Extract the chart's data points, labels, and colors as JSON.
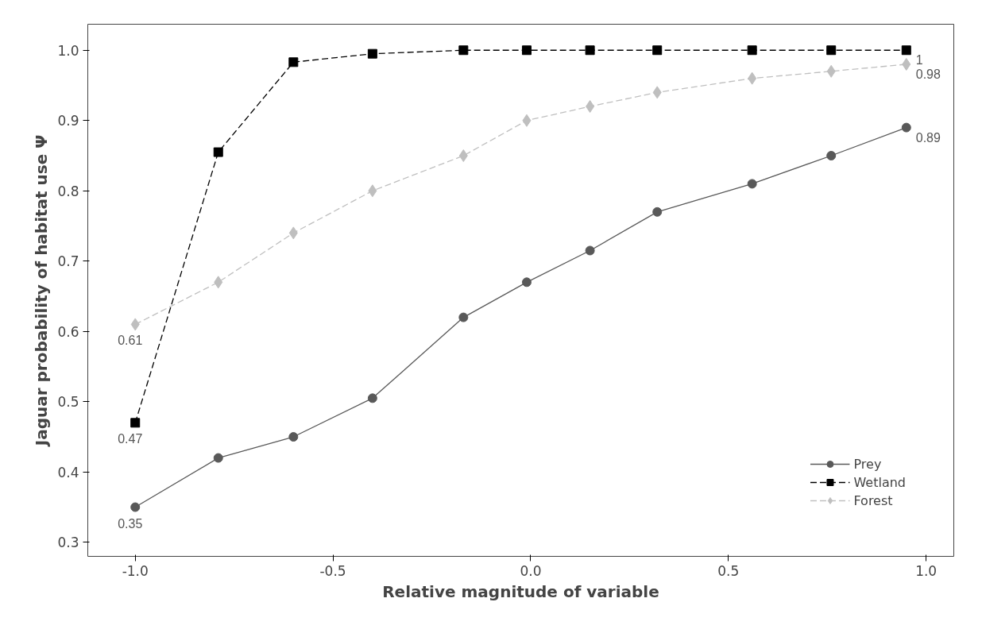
{
  "chart_data": {
    "type": "line",
    "xlabel": "Relative magnitude of variable",
    "ylabel": "Jaguar probability of habitat use Ψ",
    "x": [
      -1.0,
      -0.79,
      -0.6,
      -0.4,
      -0.17,
      -0.01,
      0.15,
      0.32,
      0.56,
      0.76,
      0.95
    ],
    "series": [
      {
        "name": "Prey",
        "color": "#595959",
        "marker": "circle",
        "line_style": "solid",
        "values": [
          0.35,
          0.42,
          0.45,
          0.505,
          0.62,
          0.67,
          0.715,
          0.77,
          0.81,
          0.85,
          0.89
        ],
        "value_labels": [
          "0.35",
          null,
          null,
          null,
          null,
          null,
          null,
          null,
          null,
          null,
          "0.89"
        ]
      },
      {
        "name": "Wetland",
        "color": "#000000",
        "marker": "square",
        "line_style": "dashed",
        "values": [
          0.47,
          0.855,
          0.983,
          0.995,
          1.0,
          1.0,
          1.0,
          1.0,
          1.0,
          1.0,
          1.0
        ],
        "value_labels": [
          "0.47",
          null,
          null,
          null,
          null,
          null,
          null,
          null,
          null,
          null,
          "1"
        ]
      },
      {
        "name": "Forest",
        "color": "#bfbfbf",
        "marker": "diamond",
        "line_style": "dashed",
        "values": [
          0.61,
          0.67,
          0.74,
          0.8,
          0.85,
          0.9,
          0.92,
          0.94,
          0.96,
          0.97,
          0.98
        ],
        "value_labels": [
          "0.61",
          null,
          null,
          null,
          null,
          null,
          null,
          null,
          null,
          null,
          "0.98"
        ]
      }
    ],
    "xlim": [
      -1.12,
      1.07
    ],
    "ylim": [
      0.28,
      1.037
    ],
    "xticks": [
      {
        "value": -1.0,
        "label": "-1.0"
      },
      {
        "value": -0.5,
        "label": "-0.5"
      },
      {
        "value": 0,
        "label": "0.0"
      },
      {
        "value": 0.5,
        "label": "0.5"
      },
      {
        "value": 1.0,
        "label": "1.0"
      }
    ],
    "yticks": [
      0.3,
      0.4,
      0.5,
      0.6,
      0.7,
      0.8,
      0.9,
      {
        "value": 1.0,
        "label": "1.0"
      }
    ],
    "legend": "bottom right",
    "grid": false
  }
}
